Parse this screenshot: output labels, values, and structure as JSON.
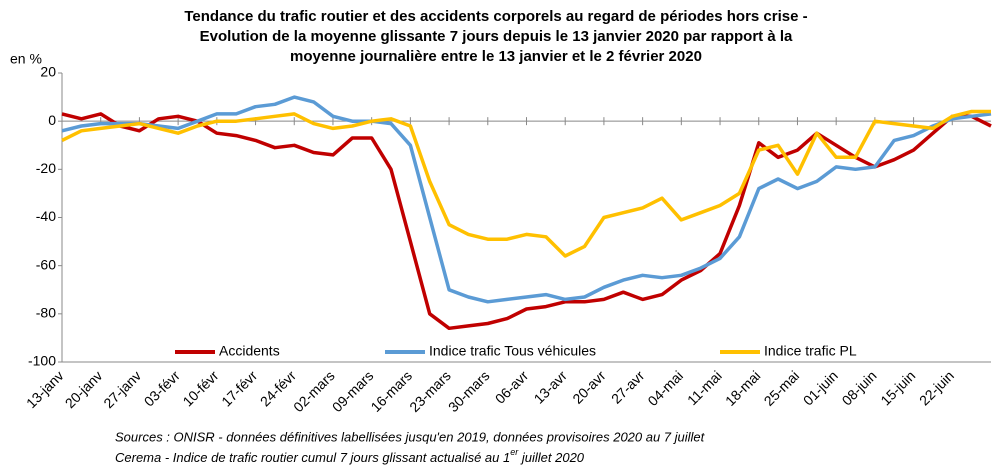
{
  "chart_data": {
    "type": "line",
    "title": [
      "Tendance du trafic routier et des accidents corporels au regard de périodes hors crise -",
      "Evolution de la moyenne glissante 7 jours depuis le 13 janvier 2020 par rapport à la",
      "moyenne journalière entre le 13 janvier et le 2 février 2020"
    ],
    "y_label": "en %",
    "notes": [
      "Sources : ONISR - données définitives labellisées jusqu'en 2019, données provisoires 2020 au 7 juillet",
      [
        "Cerema - Indice de trafic routier cumul 7 jours glissant actualisé au 1",
        "er",
        " juillet 2020"
      ]
    ],
    "categories": [
      "13-janv",
      null,
      "20-janv",
      null,
      "27-janv",
      null,
      "03-févr",
      null,
      "10-févr",
      null,
      "17-févr",
      null,
      "24-févr",
      null,
      "02-mars",
      null,
      "09-mars",
      null,
      "16-mars",
      null,
      "23-mars",
      null,
      "30-mars",
      null,
      "06-avr",
      null,
      "13-avr",
      null,
      "20-avr",
      null,
      "27-avr",
      null,
      "04-mai",
      null,
      "11-mai",
      null,
      "18-mai",
      null,
      "25-mai",
      null,
      "01-juin",
      null,
      "08-juin",
      null,
      "15-juin",
      null,
      "22-juin",
      null,
      null
    ],
    "series": [
      {
        "name": "Accidents",
        "color": "#c00000",
        "values": [
          3,
          1,
          3,
          -2,
          -4,
          1,
          2,
          0,
          -5,
          -6,
          -8,
          -11,
          -10,
          -13,
          -14,
          -7,
          -7,
          -20,
          -50,
          -80,
          -86,
          -85,
          -84,
          -82,
          -78,
          -77,
          -75,
          -75,
          -74,
          -71,
          -74,
          -72,
          -66,
          -62,
          -55,
          -35,
          -9,
          -15,
          -12,
          -5,
          -10,
          -15,
          -19,
          -16,
          -12,
          -5,
          2,
          2,
          -2
        ]
      },
      {
        "name": "Indice trafic Tous véhicules",
        "color": "#5b9bd5",
        "values": [
          -4,
          -2,
          -1,
          -1,
          -1,
          -2,
          -3,
          0,
          3,
          3,
          6,
          7,
          10,
          8,
          2,
          0,
          0,
          -1,
          -10,
          -40,
          -70,
          -73,
          -75,
          -74,
          -73,
          -72,
          -74,
          -73,
          -69,
          -66,
          -64,
          -65,
          -64,
          -61,
          -57,
          -48,
          -28,
          -24,
          -28,
          -25,
          -19,
          -20,
          -19,
          -8,
          -6,
          -2,
          1,
          2,
          3
        ]
      },
      {
        "name": "Indice trafic PL",
        "color": "#ffc000",
        "values": [
          -8,
          -4,
          -3,
          -2,
          -1,
          -3,
          -5,
          -2,
          0,
          0,
          1,
          2,
          3,
          -1,
          -3,
          -2,
          0,
          1,
          -2,
          -25,
          -43,
          -47,
          -49,
          -49,
          -47,
          -48,
          -56,
          -52,
          -40,
          -38,
          -36,
          -32,
          -41,
          -38,
          -35,
          -30,
          -12,
          -10,
          -22,
          -5,
          -15,
          -15,
          0,
          -1,
          -2,
          -3,
          2,
          4,
          4
        ]
      }
    ],
    "ylim": [
      -100,
      20
    ],
    "yticks": [
      -100,
      -80,
      -60,
      -40,
      -20,
      0,
      20
    ],
    "grid": false,
    "legend": "bottom"
  }
}
